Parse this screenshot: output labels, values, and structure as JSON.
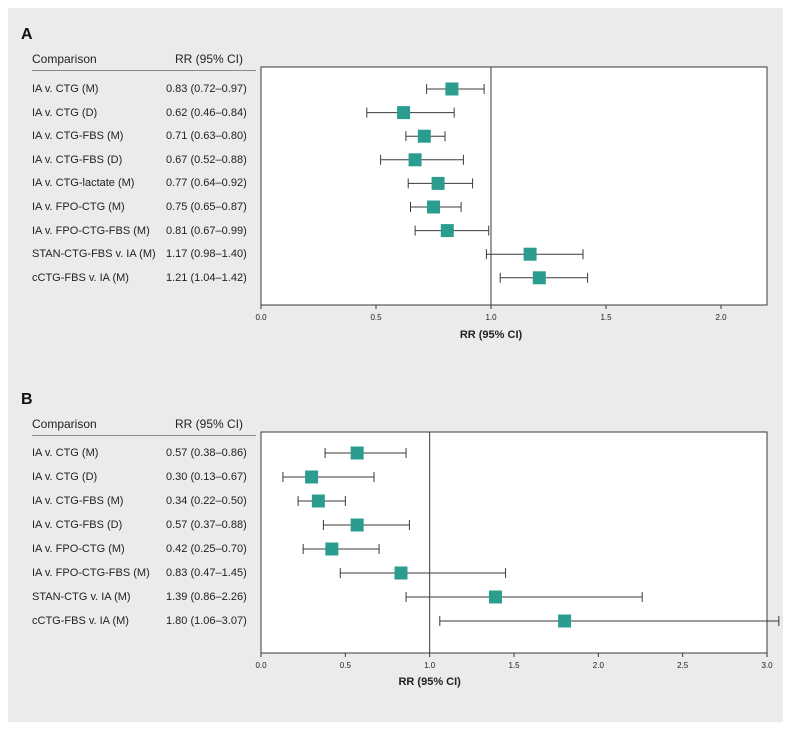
{
  "chart_data": [
    {
      "type": "forest",
      "panel_label": "A",
      "header": {
        "comparison": "Comparison",
        "rr": "RR (95% CI)"
      },
      "xlabel": "RR (95% CI)",
      "xlim": [
        0.0,
        2.2
      ],
      "xticks": [
        0.0,
        0.5,
        1.0,
        1.5,
        2.0
      ],
      "xtick_labels": [
        "0.0",
        "0.5",
        "1.0",
        "1.5",
        "2.0"
      ],
      "reference_line": 1.0,
      "rows": [
        {
          "label": "IA v. CTG (M)",
          "rr_text": "0.83 (0.72–0.97)",
          "rr": 0.83,
          "lo": 0.72,
          "hi": 0.97
        },
        {
          "label": "IA v. CTG (D)",
          "rr_text": "0.62 (0.46–0.84)",
          "rr": 0.62,
          "lo": 0.46,
          "hi": 0.84
        },
        {
          "label": "IA v. CTG-FBS (M)",
          "rr_text": "0.71 (0.63–0.80)",
          "rr": 0.71,
          "lo": 0.63,
          "hi": 0.8
        },
        {
          "label": "IA v. CTG-FBS (D)",
          "rr_text": "0.67 (0.52–0.88)",
          "rr": 0.67,
          "lo": 0.52,
          "hi": 0.88
        },
        {
          "label": "IA v. CTG-lactate (M)",
          "rr_text": "0.77 (0.64–0.92)",
          "rr": 0.77,
          "lo": 0.64,
          "hi": 0.92
        },
        {
          "label": "IA v. FPO-CTG (M)",
          "rr_text": "0.75 (0.65–0.87)",
          "rr": 0.75,
          "lo": 0.65,
          "hi": 0.87
        },
        {
          "label": "IA v. FPO-CTG-FBS (M)",
          "rr_text": "0.81 (0.67–0.99)",
          "rr": 0.81,
          "lo": 0.67,
          "hi": 0.99
        },
        {
          "label": "STAN-CTG-FBS v. IA (M)",
          "rr_text": "1.17 (0.98–1.40)",
          "rr": 1.17,
          "lo": 0.98,
          "hi": 1.4
        },
        {
          "label": "cCTG-FBS v. IA (M)",
          "rr_text": "1.21 (1.04–1.42)",
          "rr": 1.21,
          "lo": 1.04,
          "hi": 1.42
        }
      ]
    },
    {
      "type": "forest",
      "panel_label": "B",
      "header": {
        "comparison": "Comparison",
        "rr": "RR (95% CI)"
      },
      "xlabel": "RR (95% CI)",
      "xlim": [
        0.0,
        3.0
      ],
      "xticks": [
        0.0,
        0.5,
        1.0,
        1.5,
        2.0,
        2.5,
        3.0
      ],
      "xtick_labels": [
        "0.0",
        "0.5",
        "1.0",
        "1.5",
        "2.0",
        "2.5",
        "3.0"
      ],
      "reference_line": 1.0,
      "rows": [
        {
          "label": "IA v. CTG (M)",
          "rr_text": "0.57 (0.38–0.86)",
          "rr": 0.57,
          "lo": 0.38,
          "hi": 0.86
        },
        {
          "label": "IA v. CTG (D)",
          "rr_text": "0.30 (0.13–0.67)",
          "rr": 0.3,
          "lo": 0.13,
          "hi": 0.67
        },
        {
          "label": "IA v. CTG-FBS (M)",
          "rr_text": "0.34 (0.22–0.50)",
          "rr": 0.34,
          "lo": 0.22,
          "hi": 0.5
        },
        {
          "label": "IA v. CTG-FBS (D)",
          "rr_text": "0.57 (0.37–0.88)",
          "rr": 0.57,
          "lo": 0.37,
          "hi": 0.88
        },
        {
          "label": "IA v. FPO-CTG (M)",
          "rr_text": "0.42 (0.25–0.70)",
          "rr": 0.42,
          "lo": 0.25,
          "hi": 0.7
        },
        {
          "label": "IA v. FPO-CTG-FBS (M)",
          "rr_text": "0.83 (0.47–1.45)",
          "rr": 0.83,
          "lo": 0.47,
          "hi": 1.45
        },
        {
          "label": "STAN-CTG v. IA (M)",
          "rr_text": "1.39 (0.86–2.26)",
          "rr": 1.39,
          "lo": 0.86,
          "hi": 2.26
        },
        {
          "label": "cCTG-FBS v. IA (M)",
          "rr_text": "1.80 (1.06–3.07)",
          "rr": 1.8,
          "lo": 1.06,
          "hi": 3.07
        }
      ]
    }
  ],
  "colors": {
    "marker": "#2a9d8f",
    "background": "#ebebeb",
    "plot_bg": "#ffffff",
    "line": "#3a3a3a"
  }
}
